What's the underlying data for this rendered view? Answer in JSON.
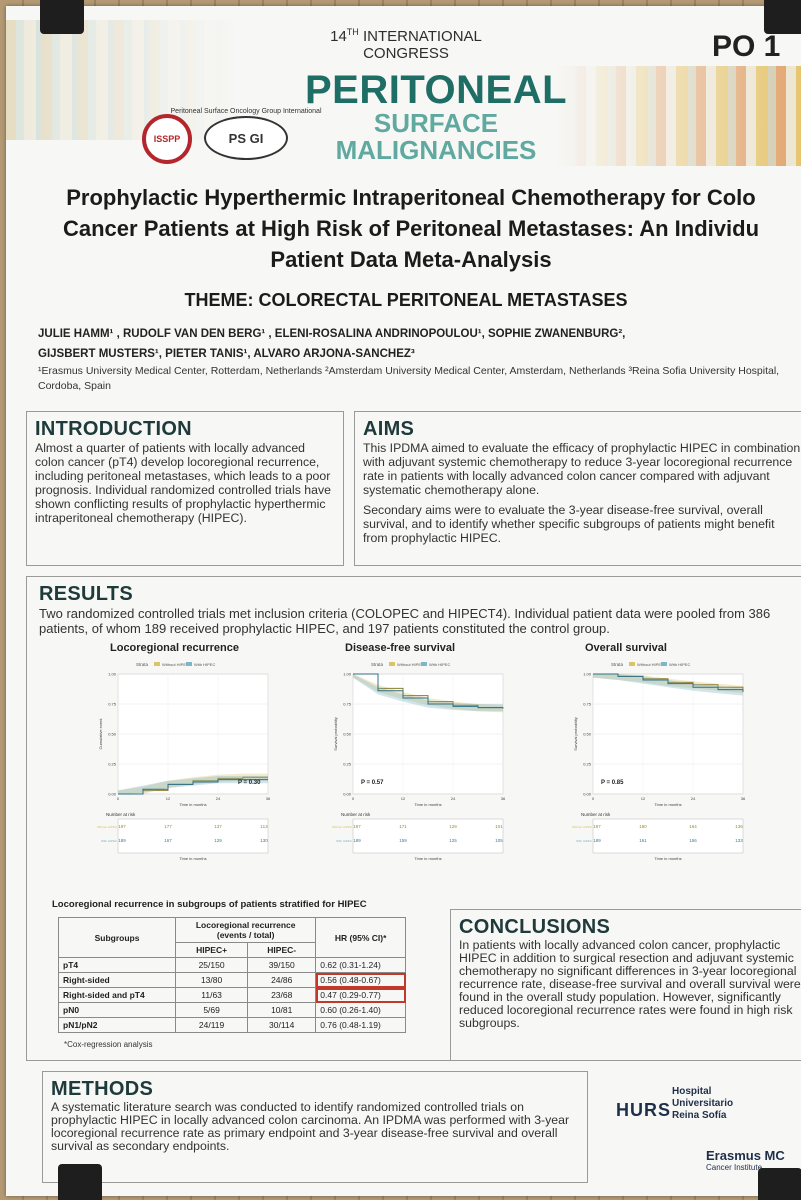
{
  "conference": {
    "ordinal": "14",
    "ordinal_suffix": "TH",
    "line1": "INTERNATIONAL",
    "line2": "CONGRESS",
    "title_line1": "PERITONEAL",
    "title_line2": "SURFACE",
    "title_line3": "MALIGNANCIES",
    "poster_code": "PO 1",
    "logo_isspp": "ISSPP",
    "logo_psogi": "PS GI",
    "logo_psogi_caption": "Peritoneal Surface Oncology Group International"
  },
  "poster": {
    "title_lines": [
      "Prophylactic Hyperthermic Intraperitoneal Chemotherapy for Colo",
      "Cancer Patients at High Risk of Peritoneal Metastases: An Individu",
      "Patient Data Meta-Analysis"
    ],
    "theme": "THEME: COLORECTAL PERITONEAL METASTASES",
    "authors_line1": "JULIE HAMM¹ , RUDOLF VAN DEN BERG¹ , ELENI-ROSALINA ANDRINOPOULOU¹, SOPHIE ZWANENBURG²,",
    "authors_line2": "GIJSBERT MUSTERS¹, PIETER TANIS¹, ALVARO ARJONA-SANCHEZ³",
    "affiliations": "¹Erasmus University Medical Center, Rotterdam, Netherlands ²Amsterdam University Medical Center, Amsterdam, Netherlands ³Reina Sofia University Hospital, Cordoba, Spain"
  },
  "introduction": {
    "heading": "INTRODUCTION",
    "text": "Almost a quarter of patients with locally advanced colon cancer (pT4) develop locoregional recurrence, including peritoneal metastases, which leads to a poor prognosis. Individual randomized controlled trials have shown conflicting results of prophylactic hyperthermic intraperitoneal chemotherapy (HIPEC)."
  },
  "aims": {
    "heading": "AIMS",
    "text1": "This IPDMA aimed to evaluate the efficacy of prophylactic HIPEC in combination with adjuvant systemic chemotherapy to reduce 3-year locoregional recurrence rate in patients with locally advanced colon cancer compared with adjuvant systematic chemotherapy alone.",
    "text2": "Secondary aims were to evaluate the 3-year disease-free survival, overall survival, and to identify whether specific subgroups of patients might benefit from prophylactic HIPEC."
  },
  "results": {
    "heading": "RESULTS",
    "summary": "Two randomized controlled trials met inclusion criteria (COLOPEC and HIPECT4). Individual patient data were pooled from 386 patients, of whom 189 received prophylactic HIPEC, and 197 patients constituted the control group."
  },
  "colors": {
    "without_hipec": "#d9c46a",
    "with_hipec": "#7fb5c8",
    "heading": "#1e3a3a",
    "highlight": "#c0392b"
  },
  "chart_data": [
    {
      "type": "line",
      "title": "Locoregional recurrence",
      "legend_title": "Strata",
      "series": [
        {
          "name": "Without HIPEC",
          "x": [
            0,
            6,
            12,
            18,
            24,
            30,
            36
          ],
          "values": [
            0.0,
            0.03,
            0.08,
            0.11,
            0.13,
            0.14,
            0.14
          ]
        },
        {
          "name": "With HIPEC",
          "x": [
            0,
            6,
            12,
            18,
            24,
            30,
            36
          ],
          "values": [
            0.0,
            0.04,
            0.08,
            0.1,
            0.12,
            0.12,
            0.12
          ]
        }
      ],
      "ylabel": "Cumulative event",
      "xlabel": "Time in months",
      "xticks": [
        "0",
        "12",
        "24",
        "36"
      ],
      "yticks": [
        "0.00",
        "0.25",
        "0.50",
        "0.75",
        "1.00"
      ],
      "ylim": [
        0,
        1
      ],
      "xlim": [
        0,
        36
      ],
      "annotation": "P = 0.30",
      "risk_table": {
        "title": "Number at risk",
        "rows": [
          {
            "label": "Without HIPEC",
            "values": [
              "197",
              "177",
              "137",
              "113"
            ]
          },
          {
            "label": "With HIPEC",
            "values": [
              "189",
              "167",
              "129",
              "130"
            ]
          }
        ]
      }
    },
    {
      "type": "line",
      "title": "Disease-free survival",
      "legend_title": "Strata",
      "series": [
        {
          "name": "Without HIPEC",
          "x": [
            0,
            6,
            12,
            18,
            24,
            30,
            36
          ],
          "values": [
            1.0,
            0.88,
            0.82,
            0.77,
            0.74,
            0.72,
            0.71
          ]
        },
        {
          "name": "With HIPEC",
          "x": [
            0,
            6,
            12,
            18,
            24,
            30,
            36
          ],
          "values": [
            1.0,
            0.86,
            0.8,
            0.75,
            0.73,
            0.72,
            0.72
          ]
        }
      ],
      "ylabel": "Survival probability",
      "xlabel": "Time in months",
      "xticks": [
        "0",
        "12",
        "24",
        "36"
      ],
      "yticks": [
        "0.00",
        "0.25",
        "0.50",
        "0.75",
        "1.00"
      ],
      "ylim": [
        0,
        1
      ],
      "xlim": [
        0,
        36
      ],
      "annotation": "P = 0.57",
      "risk_table": {
        "title": "Number at risk",
        "rows": [
          {
            "label": "Without HIPEC",
            "values": [
              "197",
              "171",
              "129",
              "101"
            ]
          },
          {
            "label": "With HIPEC",
            "values": [
              "189",
              "159",
              "125",
              "105"
            ]
          }
        ]
      }
    },
    {
      "type": "line",
      "title": "Overall survival",
      "legend_title": "Strata",
      "series": [
        {
          "name": "Without HIPEC",
          "x": [
            0,
            6,
            12,
            18,
            24,
            30,
            36
          ],
          "values": [
            1.0,
            0.98,
            0.96,
            0.93,
            0.91,
            0.89,
            0.87
          ]
        },
        {
          "name": "With HIPEC",
          "x": [
            0,
            6,
            12,
            18,
            24,
            30,
            36
          ],
          "values": [
            1.0,
            0.98,
            0.95,
            0.92,
            0.89,
            0.87,
            0.85
          ]
        }
      ],
      "ylabel": "Survival probability",
      "xlabel": "Time in months",
      "xticks": [
        "0",
        "12",
        "24",
        "36"
      ],
      "yticks": [
        "0.00",
        "0.25",
        "0.50",
        "0.75",
        "1.00"
      ],
      "ylim": [
        0,
        1
      ],
      "xlim": [
        0,
        36
      ],
      "annotation": "P = 0.85",
      "risk_table": {
        "title": "Number at risk",
        "rows": [
          {
            "label": "Without HIPEC",
            "values": [
              "197",
              "180",
              "164",
              "136"
            ]
          },
          {
            "label": "With HIPEC",
            "values": [
              "189",
              "161",
              "156",
              "133"
            ]
          }
        ]
      }
    }
  ],
  "subgroups": {
    "title": "Locoregional recurrence in subgroups of patients stratified for HIPEC",
    "header_subgroups": "Subgroups",
    "header_lrr": "Locoregional recurrence",
    "header_lrr2": "(events / total)",
    "header_hr": "HR (95% CI)*",
    "header_plus": "HIPEC+",
    "header_minus": "HIPEC-",
    "rows": [
      {
        "subgroup": "pT4",
        "plus": "25/150",
        "minus": "39/150",
        "hr": "0.62 (0.31-1.24)"
      },
      {
        "subgroup": "Right-sided",
        "plus": "13/80",
        "minus": "24/86",
        "hr": "0.56 (0.48-0.67)"
      },
      {
        "subgroup": "Right-sided and pT4",
        "plus": "11/63",
        "minus": "23/68",
        "hr": "0.47 (0.29-0.77)"
      },
      {
        "subgroup": "pN0",
        "plus": "5/69",
        "minus": "10/81",
        "hr": "0.60 (0.26-1.40)"
      },
      {
        "subgroup": "pN1/pN2",
        "plus": "24/119",
        "minus": "30/114",
        "hr": "0.76 (0.48-1.19)"
      }
    ],
    "footnote": "*Cox-regression analysis"
  },
  "conclusions": {
    "heading": "CONCLUSIONS",
    "text": "In patients with locally advanced colon cancer, prophylactic HIPEC in addition to surgical resection and adjuvant systemic chemotherapy no significant differences in 3-year locoregional recurrence rate, disease-free survival and overall survival were found in the overall study population. However, significantly reduced locoregional recurrence rates were found in high risk subgroups."
  },
  "methods": {
    "heading": "METHODS",
    "text": "A systematic literature search was conducted to identify randomized controlled trials on prophylactic HIPEC in locally advanced colon carcinoma. An IPDMA was performed with 3-year locoregional recurrence rate as primary endpoint and 3-year disease-free survival and overall survival as secondary endpoints."
  },
  "logos": {
    "hurs": "HURS",
    "hurs_line1": "Hospital",
    "hurs_line2": "Universitario",
    "hurs_line3": "Reina Sofía",
    "emc": "Erasmus MC",
    "emc_sub": "Cancer Institute"
  }
}
